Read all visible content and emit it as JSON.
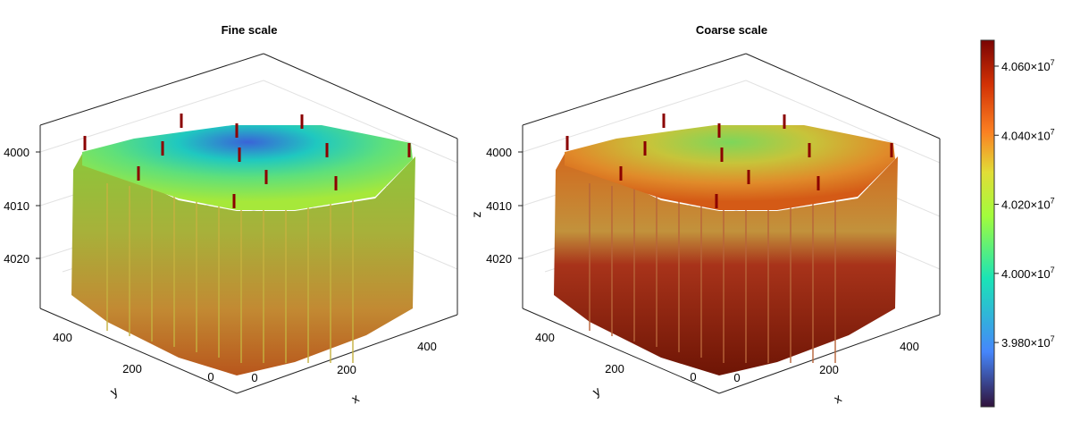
{
  "chart_data": [
    {
      "type": "3d-voxel",
      "title": "Fine scale",
      "xlabel": "x",
      "ylabel": "y",
      "zlabel": "",
      "x_ticks": [
        "0",
        "200",
        "400"
      ],
      "y_ticks": [
        "0",
        "200",
        "400"
      ],
      "z_ticks": [
        "4000",
        "4010",
        "4020"
      ],
      "z_reversed": true,
      "grid": true,
      "well_count": 12
    },
    {
      "type": "3d-voxel",
      "title": "Coarse scale",
      "xlabel": "x",
      "ylabel": "y",
      "zlabel": "z",
      "x_ticks": [
        "0",
        "200",
        "400"
      ],
      "y_ticks": [
        "0",
        "200",
        "400"
      ],
      "z_ticks": [
        "4000",
        "4010",
        "4020"
      ],
      "z_reversed": true,
      "grid": true,
      "well_count": 12
    }
  ],
  "colorbar": {
    "colormap": "turbo",
    "range": [
      39614000,
      40675000
    ],
    "ticks": [
      {
        "value": 40600000,
        "label": "4.060×10",
        "exp": "7"
      },
      {
        "value": 40400000,
        "label": "4.040×10",
        "exp": "7"
      },
      {
        "value": 40200000,
        "label": "4.020×10",
        "exp": "7"
      },
      {
        "value": 40000000,
        "label": "4.000×10",
        "exp": "7"
      },
      {
        "value": 39800000,
        "label": "3.980×10",
        "exp": "7"
      }
    ],
    "colors": [
      "#30123b",
      "#4686fb",
      "#1ae4b6",
      "#a2fc3c",
      "#e1dd37",
      "#fb8022",
      "#d23105",
      "#7a0403"
    ]
  },
  "well_color": "#8b0000"
}
